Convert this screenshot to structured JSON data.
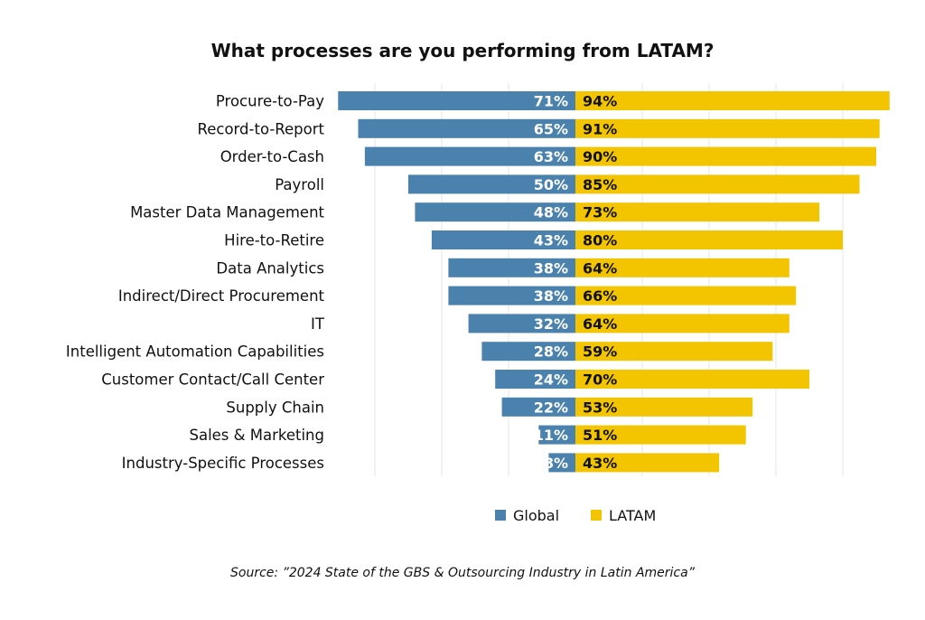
{
  "title": "What processes are you performing from LATAM?",
  "source": "Source: ”2024 State of the GBS & Outsourcing Industry in Latin America”",
  "colors": {
    "global": "#4a81ad",
    "latam": "#f2c500"
  },
  "chart_data": {
    "type": "bar",
    "orientation": "horizontal-diverging",
    "title": "What processes are you performing from LATAM?",
    "categories": [
      "Procure-to-Pay",
      "Record-to-Report",
      "Order-to-Cash",
      "Payroll",
      "Master Data Management",
      "Hire-to-Retire",
      "Data Analytics",
      "Indirect/Direct Procurement",
      "IT",
      "Intelligent Automation Capabilities",
      "Customer Contact/Call Center",
      "Supply Chain",
      "Sales & Marketing",
      "Industry-Specific Processes"
    ],
    "series": [
      {
        "name": "Global",
        "values": [
          71,
          65,
          63,
          50,
          48,
          43,
          38,
          38,
          32,
          28,
          24,
          22,
          11,
          8
        ]
      },
      {
        "name": "LATAM",
        "values": [
          94,
          91,
          90,
          85,
          73,
          80,
          64,
          66,
          64,
          59,
          70,
          53,
          51,
          43
        ]
      }
    ],
    "value_suffix": "%",
    "legend_position": "bottom",
    "grid": true
  }
}
